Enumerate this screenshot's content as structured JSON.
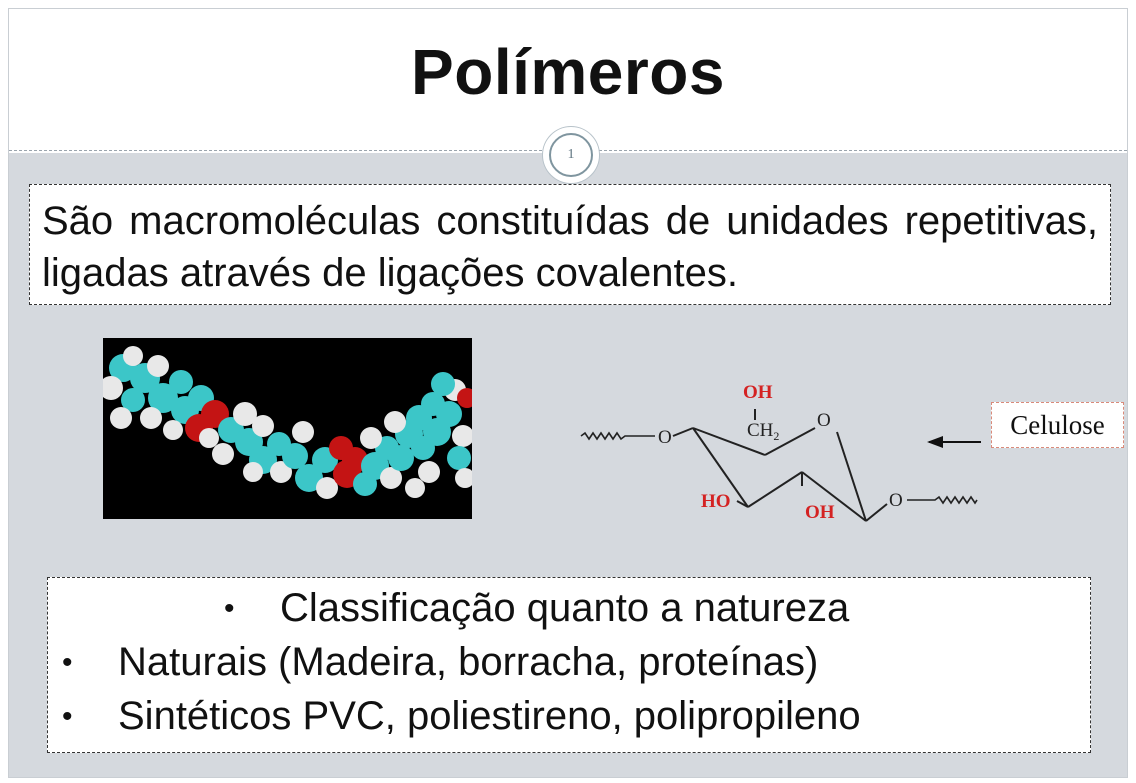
{
  "slide": {
    "title": "Polímeros",
    "number": "1"
  },
  "definition": {
    "text": "São macromoléculas constituídas de unidades repetitivas, ligadas através de ligações covalentes."
  },
  "figures": {
    "molecule_image": "polymer-space-filling-model",
    "cellulose_label": "Celulose",
    "structure_labels": {
      "oh_top": "OH",
      "ch2": "CH",
      "ch2_subscript": "2",
      "ring_oxygen": "O",
      "left_oxygen": "O",
      "right_oxygen": "O",
      "ho_left": "HO",
      "oh_bottom": "OH"
    },
    "colors": {
      "hydroxyl": "#d42222",
      "bond": "#222222"
    }
  },
  "classification": {
    "heading": "Classificação quanto a natureza",
    "items": [
      "Naturais (Madeira, borracha, proteínas)",
      "Sintéticos PVC, poliestireno, polipropileno"
    ]
  }
}
